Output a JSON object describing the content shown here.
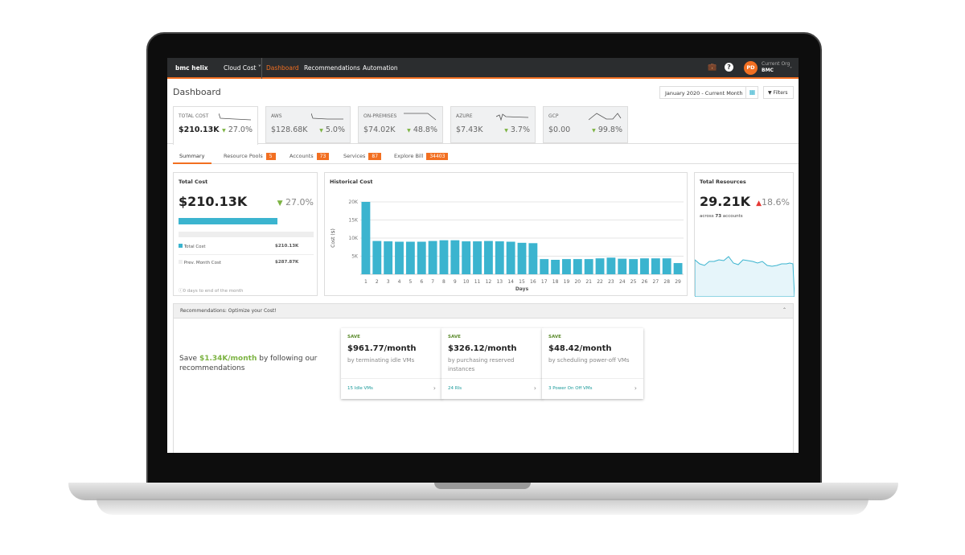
{
  "nav": {
    "logo": "bmc helix",
    "product": "Cloud Cost",
    "items": [
      "Dashboard",
      "Recommendations",
      "Automation"
    ],
    "active": "Dashboard",
    "avatar": "PD",
    "org_label": "Current Org",
    "org": "BMC"
  },
  "header": {
    "title": "Dashboard",
    "date_range": "January 2020 - Current Month",
    "filters": "Filters"
  },
  "kpis": [
    {
      "label": "TOTAL COST",
      "value": "$210.13K",
      "change": "27.0%"
    },
    {
      "label": "AWS",
      "value": "$128.68K",
      "change": "5.0%"
    },
    {
      "label": "ON-PREMISES",
      "value": "$74.02K",
      "change": "48.8%"
    },
    {
      "label": "AZURE",
      "value": "$7.43K",
      "change": "3.7%"
    },
    {
      "label": "GCP",
      "value": "$0.00",
      "change": "99.8%"
    }
  ],
  "tabs": [
    {
      "label": "Summary"
    },
    {
      "label": "Resource Pools",
      "badge": "5"
    },
    {
      "label": "Accounts",
      "badge": "73"
    },
    {
      "label": "Services",
      "badge": "87"
    },
    {
      "label": "Explore Bill",
      "badge": "34403"
    }
  ],
  "total_cost": {
    "title": "Total Cost",
    "value": "$210.13K",
    "change": "27.0%",
    "progress": 0.73,
    "legend": [
      {
        "label": "Total Cost",
        "value": "$210.13K"
      },
      {
        "label": "Prev. Month Cost",
        "value": "$287.87K"
      }
    ],
    "note": "0 days to end of the month"
  },
  "chart_data": {
    "type": "bar",
    "title": "Historical Cost",
    "xlabel": "Days",
    "ylabel": "Cost ($)",
    "ylim": [
      0,
      20000
    ],
    "yticks": [
      "5K",
      "10K",
      "15K",
      "20K"
    ],
    "categories": [
      "1",
      "2",
      "3",
      "4",
      "5",
      "6",
      "7",
      "8",
      "9",
      "10",
      "11",
      "12",
      "13",
      "14",
      "15",
      "16",
      "17",
      "18",
      "19",
      "20",
      "21",
      "22",
      "23",
      "24",
      "25",
      "26",
      "27",
      "28",
      "29"
    ],
    "values": [
      20000,
      9200,
      9100,
      9000,
      9000,
      9000,
      9200,
      9400,
      9400,
      9100,
      9100,
      9200,
      9100,
      9000,
      8700,
      8600,
      4200,
      4000,
      4200,
      4200,
      4200,
      4400,
      4600,
      4300,
      4200,
      4400,
      4400,
      4400,
      3100
    ],
    "color": "#3bb4cf"
  },
  "resources": {
    "title": "Total Resources",
    "value": "29.21K",
    "change": "18.6%",
    "sub_prefix": "across ",
    "sub_count": "73",
    "sub_suffix": " accounts"
  },
  "recommendations": {
    "title": "Recommendations: Optimize your Cost!",
    "save_prefix": "Save ",
    "save_amount": "$1.34K/month",
    "save_suffix": " by following our recommendations",
    "cards": [
      {
        "tag": "SAVE",
        "amount": "$961.77/month",
        "desc": "by terminating idle VMs",
        "link": "15 Idle VMs"
      },
      {
        "tag": "SAVE",
        "amount": "$326.12/month",
        "desc": "by purchasing reserved instances",
        "link": "24 RIs"
      },
      {
        "tag": "SAVE",
        "amount": "$48.42/month",
        "desc": "by scheduling power-off VMs",
        "link": "3 Power On Off VMs"
      }
    ]
  }
}
